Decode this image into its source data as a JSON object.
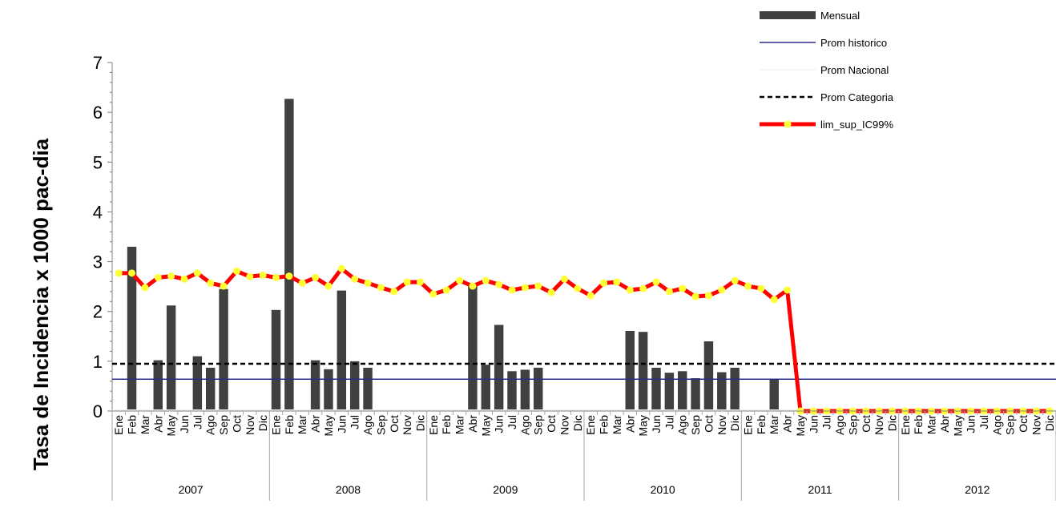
{
  "chart_data": {
    "type": "bar",
    "ylabel": "Tasa de Incidencia x 1000 pac-dia",
    "xlabel": "",
    "ylim": [
      0,
      7
    ],
    "yticks": [
      "0",
      "1",
      "2",
      "3",
      "4",
      "5",
      "6",
      "7"
    ],
    "years": [
      "2007",
      "2008",
      "2009",
      "2010",
      "2011",
      "2012"
    ],
    "month_labels": [
      "Ene",
      "Feb",
      "Mar",
      "Abr",
      "May",
      "Jun",
      "Jul",
      "Ago",
      "Sep",
      "Oct",
      "Nov",
      "Dic"
    ],
    "legend_position": "top-right",
    "series": [
      {
        "name": "Mensual",
        "kind": "bar",
        "color": "#404040",
        "values": [
          0,
          3.3,
          0,
          1.02,
          2.12,
          0,
          1.1,
          0.87,
          2.45,
          0,
          0,
          0,
          2.03,
          6.27,
          0,
          1.02,
          0.84,
          2.42,
          1.0,
          0.87,
          0,
          0,
          0,
          0,
          0,
          0,
          0,
          2.55,
          0.93,
          1.73,
          0.8,
          0.83,
          0.87,
          0,
          0,
          0,
          0,
          0,
          0,
          1.61,
          1.59,
          0.87,
          0.77,
          0.8,
          0.66,
          1.4,
          0.78,
          0.87,
          0,
          0,
          0.64,
          0,
          0,
          0,
          0,
          0,
          0,
          0,
          0,
          0,
          0,
          0,
          0,
          0,
          0,
          0,
          0,
          0,
          0,
          0,
          0,
          0
        ]
      },
      {
        "name": "Prom historico",
        "kind": "hline",
        "color": "#2b2b8c",
        "value": 0.64
      },
      {
        "name": "Prom Nacional",
        "kind": "hline",
        "color": "#f2f2f2",
        "value": 0.02
      },
      {
        "name": "Prom Categoria",
        "kind": "hline-dashed",
        "color": "#000000",
        "value": 0.95
      },
      {
        "name": "lim_sup_IC99%",
        "kind": "line",
        "color": "#ff0000",
        "marker_color": "#ffff33",
        "values": [
          2.77,
          2.77,
          2.48,
          2.68,
          2.71,
          2.65,
          2.77,
          2.57,
          2.51,
          2.81,
          2.7,
          2.73,
          2.68,
          2.71,
          2.57,
          2.68,
          2.51,
          2.86,
          2.65,
          2.57,
          2.48,
          2.4,
          2.59,
          2.59,
          2.35,
          2.43,
          2.62,
          2.51,
          2.62,
          2.54,
          2.43,
          2.48,
          2.51,
          2.38,
          2.65,
          2.46,
          2.32,
          2.57,
          2.59,
          2.43,
          2.46,
          2.59,
          2.4,
          2.46,
          2.3,
          2.32,
          2.43,
          2.62,
          2.51,
          2.46,
          2.24,
          2.43,
          0,
          0,
          0,
          0,
          0,
          0,
          0,
          0,
          0,
          0,
          0,
          0,
          0,
          0,
          0,
          0,
          0,
          0,
          0,
          0
        ]
      }
    ]
  }
}
